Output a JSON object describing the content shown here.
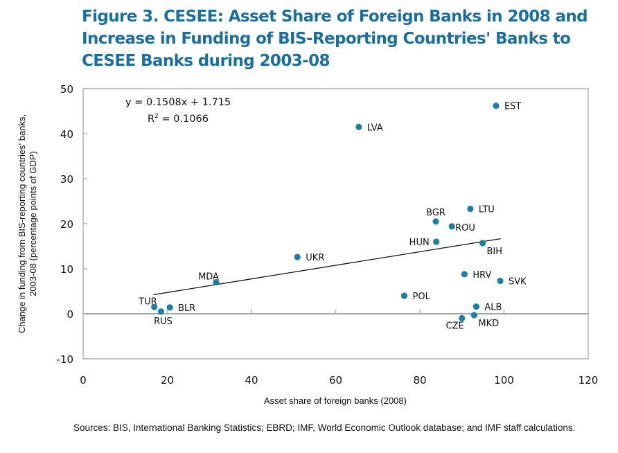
{
  "chart_data": {
    "type": "scatter",
    "title": "Figure 3. CESEE: Asset Share of Foreign Banks in 2008 and Increase in Funding of BIS-Reporting Countries' Banks to CESEE Banks during 2003-08",
    "xlabel": "Asset share of foreign banks (2008)",
    "ylabel_line1": "Change in funding from BIS-reporting countries' banks,",
    "ylabel_line2": "2003-08 (percentage points of GDP)",
    "xlim": [
      0,
      120
    ],
    "ylim": [
      -10,
      50
    ],
    "xticks": [
      "0",
      "20",
      "40",
      "60",
      "80",
      "100",
      "120"
    ],
    "yticks": [
      "50",
      "40",
      "30",
      "20",
      "10",
      "0",
      "-10"
    ],
    "grid": false,
    "marker_color": "#1a7fa5",
    "points": [
      {
        "label": "EST",
        "x": 98.1,
        "y": 46.2,
        "anchor": "right"
      },
      {
        "label": "LVA",
        "x": 65.5,
        "y": 41.5,
        "anchor": "right"
      },
      {
        "label": "LTU",
        "x": 92.0,
        "y": 23.3,
        "anchor": "right"
      },
      {
        "label": "BGR",
        "x": 83.8,
        "y": 20.5,
        "anchor": "above"
      },
      {
        "label": "ROU",
        "x": 87.6,
        "y": 19.4,
        "anchor": "right-tight"
      },
      {
        "label": "HUN",
        "x": 83.9,
        "y": 16.0,
        "anchor": "left"
      },
      {
        "label": "BIH",
        "x": 94.9,
        "y": 15.7,
        "anchor": "below-right"
      },
      {
        "label": "UKR",
        "x": 50.9,
        "y": 12.6,
        "anchor": "right"
      },
      {
        "label": "HRV",
        "x": 90.6,
        "y": 8.8,
        "anchor": "right"
      },
      {
        "label": "SVK",
        "x": 99.1,
        "y": 7.3,
        "anchor": "right"
      },
      {
        "label": "MDA",
        "x": 31.6,
        "y": 7.0,
        "anchor": "above-left"
      },
      {
        "label": "POL",
        "x": 76.3,
        "y": 4.0,
        "anchor": "right"
      },
      {
        "label": "ALB",
        "x": 93.4,
        "y": 1.6,
        "anchor": "right"
      },
      {
        "label": "TUR",
        "x": 16.9,
        "y": 1.5,
        "anchor": "above-left"
      },
      {
        "label": "BLR",
        "x": 20.6,
        "y": 1.4,
        "anchor": "right"
      },
      {
        "label": "RUS",
        "x": 18.5,
        "y": 0.5,
        "anchor": "below"
      },
      {
        "label": "MKD",
        "x": 92.9,
        "y": -0.3,
        "anchor": "below-right"
      },
      {
        "label": "CZE",
        "x": 90.0,
        "y": -1.0,
        "anchor": "below-left"
      }
    ],
    "trendline": {
      "slope": 0.1508,
      "intercept": 1.715,
      "x_range": [
        16.7,
        99.2
      ],
      "equation": "y = 0.1508x + 1.715",
      "r2_prefix": "R",
      "r2_sup": "2",
      "r2_value": " = 0.1066"
    }
  },
  "title": "Figure 3. CESEE: Asset Share of Foreign Banks in 2008 and Increase in Funding of BIS-Reporting Countries' Banks to CESEE Banks during 2003-08",
  "sources": "Sources: BIS, International Banking Statistics; EBRD; IMF, World Economic Outlook database; and IMF staff calculations."
}
